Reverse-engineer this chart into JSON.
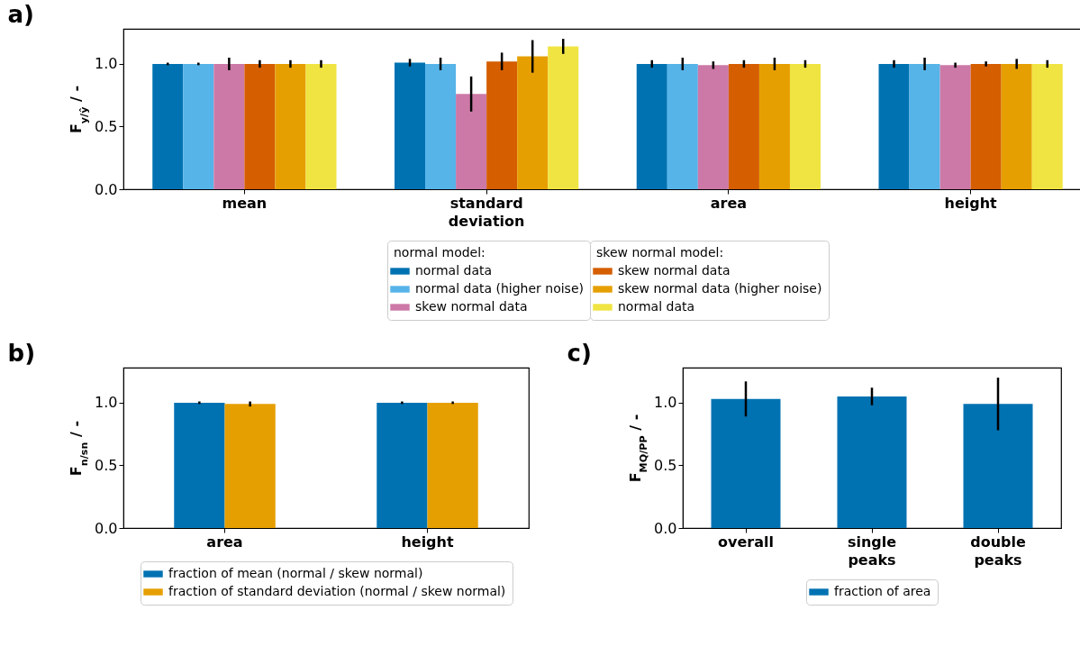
{
  "chart_data": [
    {
      "type": "bar",
      "title": "a)",
      "ylabel": "F$_{y/ŷ}$ / -",
      "categories": [
        "mean",
        "standard deviation",
        "area",
        "height"
      ],
      "legend_title": [
        "normal model:",
        "skew normal model:"
      ],
      "series": [
        {
          "name": "normal data",
          "color": "#0072b2",
          "values": [
            1.0,
            1.01,
            1.0,
            1.0
          ],
          "errors": [
            0.01,
            0.03,
            0.03,
            0.03
          ]
        },
        {
          "name": "normal data (higher noise)",
          "color": "#56b4e9",
          "values": [
            1.0,
            1.0,
            1.0,
            1.0
          ],
          "errors": [
            0.01,
            0.05,
            0.05,
            0.05
          ]
        },
        {
          "name": "skew normal data",
          "color": "#cc79a7",
          "values": [
            1.0,
            0.76,
            0.99,
            0.99
          ],
          "errors": [
            0.05,
            0.14,
            0.03,
            0.02
          ]
        },
        {
          "name": "skew normal data",
          "color": "#d55e00",
          "values": [
            1.0,
            1.02,
            1.0,
            1.0
          ],
          "errors": [
            0.03,
            0.07,
            0.03,
            0.02
          ]
        },
        {
          "name": "skew normal data (higher noise)",
          "color": "#e69f00",
          "values": [
            1.0,
            1.06,
            1.0,
            1.0
          ],
          "errors": [
            0.03,
            0.13,
            0.05,
            0.04
          ]
        },
        {
          "name": "normal data",
          "color": "#f0e442",
          "values": [
            1.0,
            1.14,
            1.0,
            1.0
          ],
          "errors": [
            0.03,
            0.06,
            0.03,
            0.03
          ]
        }
      ],
      "ylim": [
        0,
        1.28
      ],
      "yticks": [
        {
          "value": 0,
          "label": "0.0"
        },
        {
          "value": 0.5,
          "label": "0.5"
        },
        {
          "value": 1,
          "label": "1.0"
        }
      ],
      "grid": false,
      "legend": "bottom"
    },
    {
      "type": "bar",
      "title": "b)",
      "ylabel": "F$_{n/sn}$ / -",
      "categories": [
        "area",
        "height"
      ],
      "series": [
        {
          "name": "fraction of mean (normal / skew normal)",
          "color": "#0072b2",
          "values": [
            1.0,
            1.0
          ],
          "errors": [
            0.01,
            0.01
          ]
        },
        {
          "name": "fraction of standard deviation (normal / skew normal)",
          "color": "#e69f00",
          "values": [
            0.99,
            1.0
          ],
          "errors": [
            0.02,
            0.01
          ]
        }
      ],
      "ylim": [
        0,
        1.28
      ],
      "yticks": [
        {
          "value": 0,
          "label": "0.0"
        },
        {
          "value": 0.5,
          "label": "0.5"
        },
        {
          "value": 1,
          "label": "1.0"
        }
      ],
      "grid": false,
      "legend": "bottom left"
    },
    {
      "type": "bar",
      "title": "c)",
      "ylabel": "F$_{MQ/PP}$ / -",
      "categories": [
        "overall",
        "single peaks",
        "double peaks"
      ],
      "series": [
        {
          "name": "fraction of area",
          "color": "#0072b2",
          "values": [
            1.03,
            1.05,
            0.99
          ],
          "errors": [
            0.14,
            0.07,
            0.21
          ]
        }
      ],
      "ylim": [
        0,
        1.28
      ],
      "yticks": [
        {
          "value": 0,
          "label": "0.0"
        },
        {
          "value": 0.5,
          "label": "0.5"
        },
        {
          "value": 1,
          "label": "1.0"
        }
      ],
      "grid": false,
      "legend": "bottom"
    }
  ]
}
